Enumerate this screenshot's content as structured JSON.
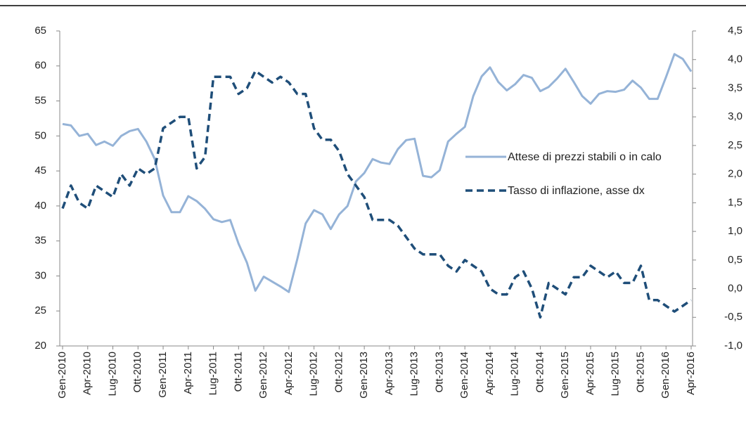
{
  "chart_data": {
    "type": "line",
    "categories": [
      "Gen-2010",
      null,
      null,
      "Apr-2010",
      null,
      null,
      "Lug-2010",
      null,
      null,
      "Ott-2010",
      null,
      null,
      "Gen-2011",
      null,
      null,
      "Apr-2011",
      null,
      null,
      "Lug-2011",
      null,
      null,
      "Ott-2011",
      null,
      null,
      "Gen-2012",
      null,
      null,
      "Apr-2012",
      null,
      null,
      "Lug-2012",
      null,
      null,
      "Ott-2012",
      null,
      null,
      "Gen-2013",
      null,
      null,
      "Apr-2013",
      null,
      null,
      "Lug-2013",
      null,
      null,
      "Ott-2013",
      null,
      null,
      "Gen-2014",
      null,
      null,
      "Apr-2014",
      null,
      null,
      "Lug-2014",
      null,
      null,
      "Ott-2014",
      null,
      null,
      "Gen-2015",
      null,
      null,
      "Apr-2015",
      null,
      null,
      "Lug-2015",
      null,
      null,
      "Ott-2015",
      null,
      null,
      "Gen-2016",
      null,
      null,
      "Apr-2016"
    ],
    "series": [
      {
        "name": "Attese di prezzi stabili o in calo",
        "color": "#95b3d7",
        "dashed": false,
        "values": [
          51.7,
          51.5,
          50.0,
          50.3,
          48.7,
          49.2,
          48.6,
          50.0,
          50.7,
          51.0,
          49.2,
          46.7,
          41.5,
          39.1,
          39.1,
          41.4,
          40.7,
          39.6,
          38.1,
          37.7,
          38.0,
          34.6,
          31.9,
          27.9,
          29.9,
          29.2,
          28.5,
          27.7,
          32.4,
          37.5,
          39.4,
          38.8,
          36.7,
          38.8,
          40.0,
          43.5,
          44.7,
          46.7,
          46.2,
          46.0,
          48.1,
          49.4,
          49.6,
          44.3,
          44.1,
          45.1,
          49.2,
          50.3,
          51.3,
          55.7,
          58.5,
          59.8,
          57.7,
          56.5,
          57.4,
          58.7,
          58.3,
          56.4,
          57.0,
          58.2,
          59.6,
          57.7,
          55.7,
          54.6,
          56.0,
          56.4,
          56.3,
          56.6,
          57.9,
          56.9,
          55.3,
          55.3,
          58.4,
          61.7,
          61.0,
          59.2
        ]
      },
      {
        "name": "Tasso di inflazione, asse dx",
        "color": "#1f4e79",
        "dashed": true,
        "axis": "y2",
        "values": [
          1.4,
          1.8,
          1.5,
          1.4,
          1.8,
          1.7,
          1.6,
          2.0,
          1.8,
          2.1,
          2.0,
          2.1,
          2.8,
          2.9,
          3.0,
          3.0,
          2.1,
          2.3,
          3.7,
          3.7,
          3.7,
          3.4,
          3.5,
          3.8,
          3.7,
          3.6,
          3.7,
          3.6,
          3.4,
          3.4,
          2.8,
          2.6,
          2.6,
          2.4,
          2.0,
          1.8,
          1.6,
          1.2,
          1.2,
          1.2,
          1.1,
          0.9,
          0.7,
          0.6,
          0.6,
          0.6,
          0.4,
          0.3,
          0.5,
          0.4,
          0.3,
          0.0,
          -0.1,
          -0.1,
          0.2,
          0.3,
          0.0,
          -0.5,
          0.1,
          0.0,
          -0.1,
          0.2,
          0.2,
          0.4,
          0.3,
          0.2,
          0.3,
          0.1,
          0.1,
          0.4,
          -0.2,
          -0.2,
          -0.3,
          -0.4,
          -0.3,
          -0.2
        ]
      }
    ],
    "ylim": [
      20,
      65
    ],
    "yticks": [
      20,
      25,
      30,
      35,
      40,
      45,
      50,
      55,
      60,
      65
    ],
    "y2lim": [
      -1.0,
      4.5
    ],
    "y2ticks": [
      {
        "value": -1.0,
        "label": "-1,0"
      },
      {
        "value": -0.5,
        "label": "-0,5"
      },
      {
        "value": 0.0,
        "label": "0,0"
      },
      {
        "value": 0.5,
        "label": "0,5"
      },
      {
        "value": 1.0,
        "label": "1,0"
      },
      {
        "value": 1.5,
        "label": "1,5"
      },
      {
        "value": 2.0,
        "label": "2,0"
      },
      {
        "value": 2.5,
        "label": "2,5"
      },
      {
        "value": 3.0,
        "label": "3,0"
      },
      {
        "value": 3.5,
        "label": "3,5"
      },
      {
        "value": 4.0,
        "label": "4,0"
      },
      {
        "value": 4.5,
        "label": "4,5"
      }
    ],
    "grid": false,
    "legend": "right"
  }
}
